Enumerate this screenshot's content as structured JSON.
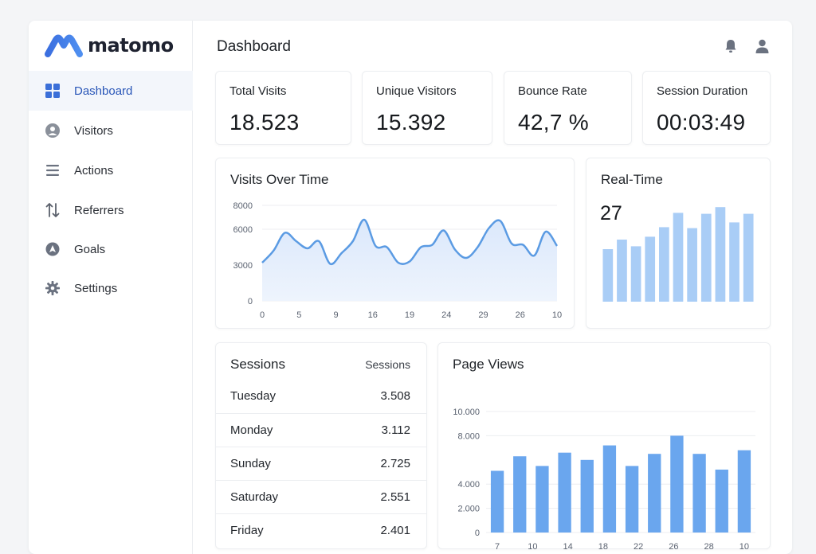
{
  "app": {
    "brand": "matomo"
  },
  "sidebar": {
    "items": [
      {
        "label": "Dashboard",
        "icon": "grid-icon",
        "active": true
      },
      {
        "label": "Visitors",
        "icon": "user-circle-icon",
        "active": false
      },
      {
        "label": "Actions",
        "icon": "list-icon",
        "active": false
      },
      {
        "label": "Referrers",
        "icon": "arrows-updown-icon",
        "active": false
      },
      {
        "label": "Goals",
        "icon": "goal-icon",
        "active": false
      },
      {
        "label": "Settings",
        "icon": "gear-icon",
        "active": false
      }
    ]
  },
  "header": {
    "title": "Dashboard",
    "icons": [
      "bell-icon",
      "user-icon"
    ]
  },
  "kpis": [
    {
      "label": "Total Visits",
      "value": "18.523"
    },
    {
      "label": "Unique Visitors",
      "value": "15.392"
    },
    {
      "label": "Bounce Rate",
      "value": "42,7 %"
    },
    {
      "label": "Session Duration",
      "value": "00:03:49"
    }
  ],
  "colors": {
    "accent": "#2a57b8",
    "line": "#5b9be3",
    "bar": "#6aa6ee",
    "bar_light": "#a9cdf6"
  },
  "chart_data": [
    {
      "type": "area",
      "title": "Visits Over Time",
      "x_tick_labels": [
        "0",
        "5",
        "9",
        "16",
        "19",
        "24",
        "29",
        "26",
        "10"
      ],
      "y_ticks": [
        "8000",
        "6000",
        "3000",
        "0"
      ],
      "y_tick_values": [
        8000,
        6000,
        3000,
        0
      ],
      "ylim": [
        0,
        8000
      ],
      "values": [
        3200,
        4200,
        5700,
        5000,
        4400,
        5000,
        3100,
        4000,
        5000,
        6800,
        4600,
        4500,
        3200,
        3300,
        4500,
        4700,
        5900,
        4300,
        3600,
        4500,
        6100,
        6700,
        4800,
        4700,
        3800,
        5800,
        4600
      ],
      "grid": true
    },
    {
      "type": "bar",
      "title": "Real-Time",
      "value_label": "27",
      "values": [
        55,
        65,
        58,
        68,
        78,
        93,
        77,
        92,
        99,
        83,
        92
      ],
      "ylim": [
        0,
        100
      ]
    },
    {
      "type": "table",
      "title": "Sessions",
      "column_header": "Sessions",
      "rows": [
        {
          "day": "Tuesday",
          "value": "3.508"
        },
        {
          "day": "Monday",
          "value": "3.112"
        },
        {
          "day": "Sunday",
          "value": "2.725"
        },
        {
          "day": "Saturday",
          "value": "2.551"
        },
        {
          "day": "Friday",
          "value": "2.401"
        }
      ]
    },
    {
      "type": "bar",
      "title": "Page Views",
      "y_ticks": [
        "10.000",
        "8.000",
        "4.000",
        "2.000",
        "0"
      ],
      "y_tick_values": [
        10000,
        8000,
        4000,
        2000,
        0
      ],
      "ylim": [
        0,
        10000
      ],
      "x_tick_labels": [
        "7",
        "10",
        "14",
        "18",
        "22",
        "26",
        "28",
        "10"
      ],
      "values": [
        5100,
        6300,
        5500,
        6600,
        6000,
        7200,
        5500,
        6500,
        8000,
        6500,
        5200,
        6800
      ],
      "grid": true
    }
  ]
}
